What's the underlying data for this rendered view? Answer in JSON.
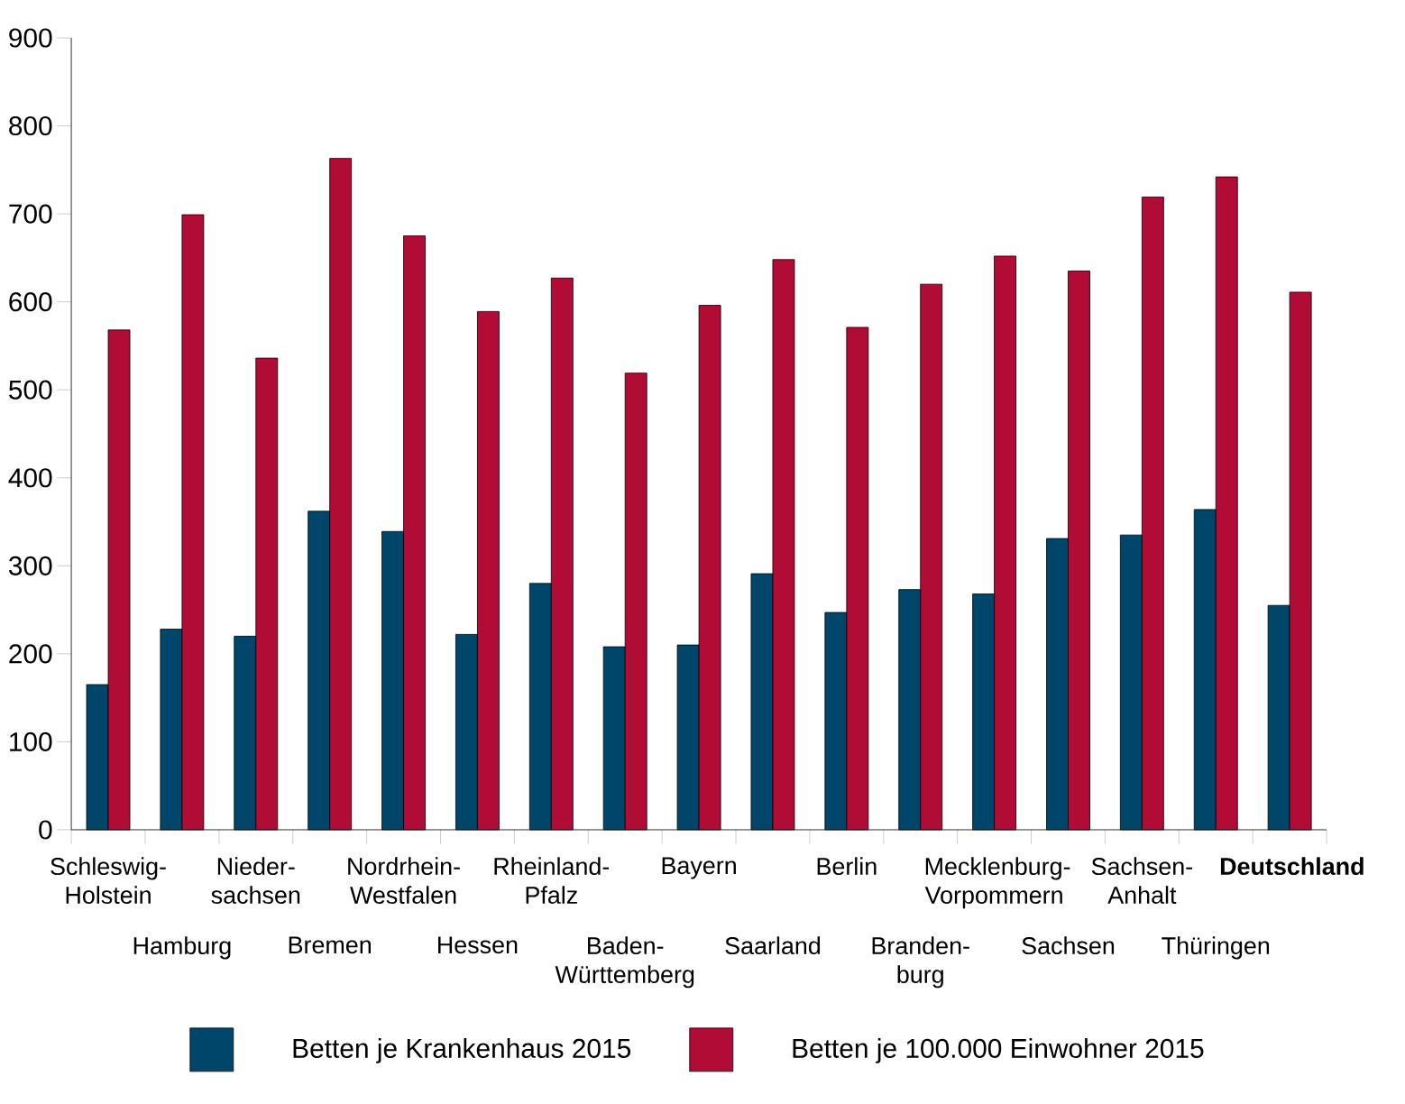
{
  "chart_data": {
    "type": "bar",
    "categories": [
      "Schleswig-Holstein",
      "Hamburg",
      "Nieder-sachsen",
      "Bremen",
      "Nordrhein-Westfalen",
      "Hessen",
      "Rheinland-Pfalz",
      "Baden-Württemberg",
      "Bayern",
      "Saarland",
      "Berlin",
      "Branden-burg",
      "Mecklenburg-Vorpommern",
      "Sachsen",
      "Sachsen-Anhalt",
      "Thüringen",
      "**Deutschland**"
    ],
    "series": [
      {
        "name": "Betten je Krankenhaus 2015",
        "color": "#00466a",
        "values": [
          165,
          228,
          220,
          362,
          339,
          222,
          280,
          208,
          210,
          291,
          247,
          273,
          268,
          331,
          335,
          364,
          255
        ]
      },
      {
        "name": "Betten je 100.000 Einwohner 2015",
        "color": "#b00c35",
        "values": [
          568,
          699,
          536,
          763,
          675,
          589,
          627,
          519,
          596,
          648,
          571,
          620,
          652,
          635,
          719,
          742,
          611
        ]
      }
    ],
    "ylim": [
      0,
      900
    ],
    "yticks": [
      0,
      100,
      200,
      300,
      400,
      500,
      600,
      700,
      800,
      900
    ],
    "legend": "bottom"
  }
}
